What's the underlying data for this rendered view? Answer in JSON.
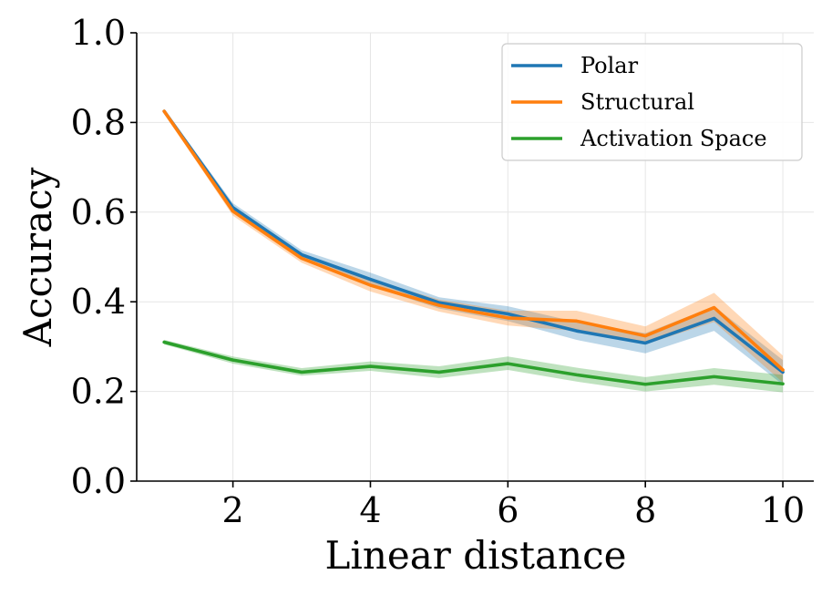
{
  "chart_data": {
    "type": "line",
    "title": "",
    "xlabel": "Linear distance",
    "ylabel": "Accuracy",
    "xlim": [
      0.6,
      10.45
    ],
    "ylim": [
      0.0,
      1.0
    ],
    "xticks": [
      2,
      4,
      6,
      8,
      10
    ],
    "xtick_labels": [
      "2",
      "4",
      "6",
      "8",
      "10"
    ],
    "yticks": [
      0.0,
      0.2,
      0.4,
      0.6,
      0.8,
      1.0
    ],
    "ytick_labels": [
      "0.0",
      "0.2",
      "0.4",
      "0.6",
      "0.8",
      "1.0"
    ],
    "grid": true,
    "legend_position": "top-right",
    "x": [
      1,
      2,
      3,
      4,
      5,
      6,
      7,
      8,
      9,
      10
    ],
    "series": [
      {
        "name": "Polar",
        "color": "#1f77b4",
        "values": [
          0.825,
          0.61,
          0.505,
          0.45,
          0.398,
          0.373,
          0.335,
          0.308,
          0.363,
          0.243
        ],
        "lower": [
          0.82,
          0.6,
          0.495,
          0.435,
          0.385,
          0.357,
          0.315,
          0.285,
          0.335,
          0.215
        ],
        "upper": [
          0.83,
          0.62,
          0.515,
          0.465,
          0.41,
          0.39,
          0.355,
          0.33,
          0.39,
          0.27
        ]
      },
      {
        "name": "Structural",
        "color": "#ff7f0e",
        "values": [
          0.825,
          0.602,
          0.497,
          0.437,
          0.392,
          0.364,
          0.357,
          0.324,
          0.387,
          0.248
        ],
        "lower": [
          0.82,
          0.592,
          0.487,
          0.423,
          0.378,
          0.347,
          0.335,
          0.305,
          0.355,
          0.22
        ],
        "upper": [
          0.83,
          0.612,
          0.507,
          0.45,
          0.405,
          0.38,
          0.38,
          0.345,
          0.42,
          0.28
        ]
      },
      {
        "name": "Activation Space",
        "color": "#2ca02c",
        "values": [
          0.31,
          0.27,
          0.243,
          0.256,
          0.243,
          0.262,
          0.237,
          0.216,
          0.233,
          0.217
        ],
        "lower": [
          0.305,
          0.262,
          0.235,
          0.246,
          0.23,
          0.248,
          0.222,
          0.2,
          0.215,
          0.198
        ],
        "upper": [
          0.315,
          0.278,
          0.252,
          0.267,
          0.256,
          0.278,
          0.253,
          0.232,
          0.252,
          0.237
        ]
      }
    ]
  }
}
